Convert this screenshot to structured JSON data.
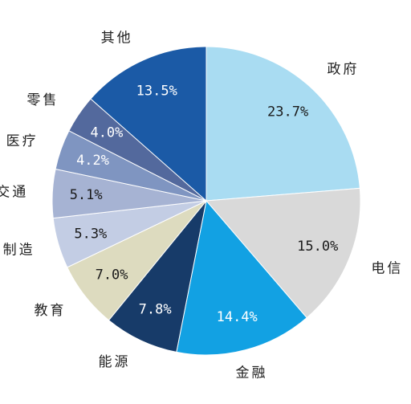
{
  "chart_data": {
    "type": "pie",
    "start_angle_deg": 0,
    "direction": "clockwise",
    "slices": [
      {
        "label": "政府",
        "value": 23.7,
        "value_label": "23.7%",
        "color": "#a9dcf2",
        "text_color": "#1a1a1a"
      },
      {
        "label": "电信",
        "value": 15.0,
        "value_label": "15.0%",
        "color": "#d9d9d9",
        "text_color": "#1a1a1a"
      },
      {
        "label": "金融",
        "value": 14.4,
        "value_label": "14.4%",
        "color": "#12a1e3",
        "text_color": "#ffffff"
      },
      {
        "label": "能源",
        "value": 7.8,
        "value_label": "7.8%",
        "color": "#173b69",
        "text_color": "#ffffff"
      },
      {
        "label": "教育",
        "value": 7.0,
        "value_label": "7.0%",
        "color": "#dddbbf",
        "text_color": "#1a1a1a"
      },
      {
        "label": "制造",
        "value": 5.3,
        "value_label": "5.3%",
        "color": "#c3cde4",
        "text_color": "#1a1a1a"
      },
      {
        "label": "交通",
        "value": 5.1,
        "value_label": "5.1%",
        "color": "#a6b3d3",
        "text_color": "#1a1a1a"
      },
      {
        "label": "医疗",
        "value": 4.2,
        "value_label": "4.2%",
        "color": "#7f95c1",
        "text_color": "#ffffff"
      },
      {
        "label": "零售",
        "value": 4.0,
        "value_label": "4.0%",
        "color": "#53699d",
        "text_color": "#ffffff"
      },
      {
        "label": "其他",
        "value": 13.5,
        "value_label": "13.5%",
        "color": "#1b5aa6",
        "text_color": "#ffffff"
      }
    ]
  }
}
